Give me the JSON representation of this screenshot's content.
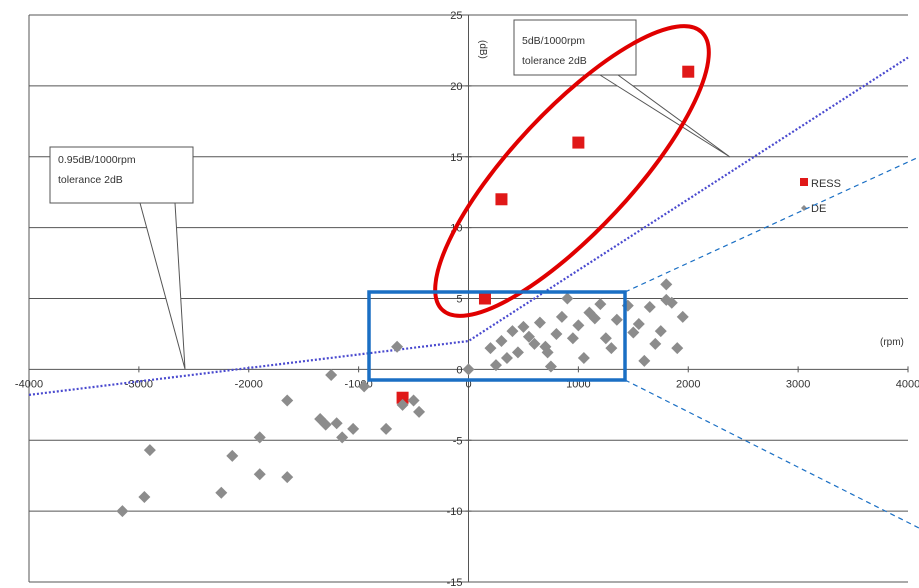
{
  "chart_data": {
    "type": "scatter",
    "title": "",
    "x_unit": "(rpm)",
    "y_unit": "(dB)",
    "xlim": [
      -4000,
      4000
    ],
    "ylim": [
      -15,
      25
    ],
    "x_ticks": [
      -4000,
      -3000,
      -2000,
      -1000,
      0,
      1000,
      2000,
      3000,
      4000
    ],
    "y_ticks": [
      25,
      20,
      15,
      10,
      5,
      0,
      -5,
      -10,
      -15
    ],
    "grid": "horizontal",
    "legend": {
      "position": "right",
      "entries": [
        {
          "label": "RESS",
          "color": "#e01818",
          "marker": "square"
        },
        {
          "label": "DE",
          "color": "#8c8c8c",
          "marker": "diamond"
        }
      ]
    },
    "series": [
      {
        "name": "RESS",
        "color": "#e01818",
        "marker": "square",
        "points": [
          [
            -600,
            -2
          ],
          [
            150,
            5
          ],
          [
            300,
            12
          ],
          [
            1000,
            16
          ],
          [
            2000,
            21
          ]
        ]
      },
      {
        "name": "DE",
        "color": "#8c8c8c",
        "marker": "diamond",
        "points": [
          [
            -3150,
            -10
          ],
          [
            -2950,
            -9
          ],
          [
            -2900,
            -5.7
          ],
          [
            -2250,
            -8.7
          ],
          [
            -2150,
            -6.1
          ],
          [
            -1900,
            -4.8
          ],
          [
            -1900,
            -7.4
          ],
          [
            -1650,
            -7.6
          ],
          [
            -1650,
            -2.2
          ],
          [
            -1350,
            -3.5
          ],
          [
            -1300,
            -3.9
          ],
          [
            -1250,
            -0.4
          ],
          [
            -1200,
            -3.8
          ],
          [
            -1150,
            -4.8
          ],
          [
            -1050,
            -4.2
          ],
          [
            -750,
            -4.2
          ],
          [
            -600,
            -2.5
          ],
          [
            -500,
            -2.2
          ],
          [
            -450,
            -3
          ],
          [
            -650,
            1.6
          ],
          [
            -950,
            -1.2
          ],
          [
            0,
            0
          ],
          [
            200,
            1.5
          ],
          [
            250,
            0.3
          ],
          [
            300,
            2
          ],
          [
            350,
            0.8
          ],
          [
            400,
            2.7
          ],
          [
            450,
            1.2
          ],
          [
            500,
            3
          ],
          [
            550,
            2.3
          ],
          [
            600,
            1.8
          ],
          [
            650,
            3.3
          ],
          [
            700,
            1.6
          ],
          [
            720,
            1.2
          ],
          [
            750,
            0.2
          ],
          [
            800,
            2.5
          ],
          [
            850,
            3.7
          ],
          [
            900,
            5
          ],
          [
            950,
            2.2
          ],
          [
            1000,
            3.1
          ],
          [
            1050,
            0.8
          ],
          [
            1100,
            4
          ],
          [
            1150,
            3.6
          ],
          [
            1200,
            4.6
          ],
          [
            1250,
            2.2
          ],
          [
            1300,
            1.5
          ],
          [
            1350,
            3.5
          ],
          [
            1450,
            4.5
          ],
          [
            1500,
            2.6
          ],
          [
            1550,
            3.2
          ],
          [
            1600,
            0.6
          ],
          [
            1650,
            4.4
          ],
          [
            1700,
            1.8
          ],
          [
            1750,
            2.7
          ],
          [
            1800,
            4.9
          ],
          [
            1850,
            4.7
          ],
          [
            1900,
            1.5
          ],
          [
            1950,
            3.7
          ],
          [
            1800,
            6
          ]
        ]
      }
    ],
    "reference_line": {
      "color": "#4a4acf",
      "points": [
        [
          -4000,
          -1.8
        ],
        [
          0,
          2
        ],
        [
          4000,
          22
        ]
      ]
    },
    "annotations": [
      {
        "text_lines": [
          "0.95dB/1000rpm",
          "tolerance 2dB"
        ],
        "pointer": [
          -2500,
          0
        ]
      },
      {
        "text_lines": [
          "5dB/1000rpm",
          "tolerance 2dB"
        ],
        "pointer": [
          2400,
          15
        ]
      }
    ]
  }
}
